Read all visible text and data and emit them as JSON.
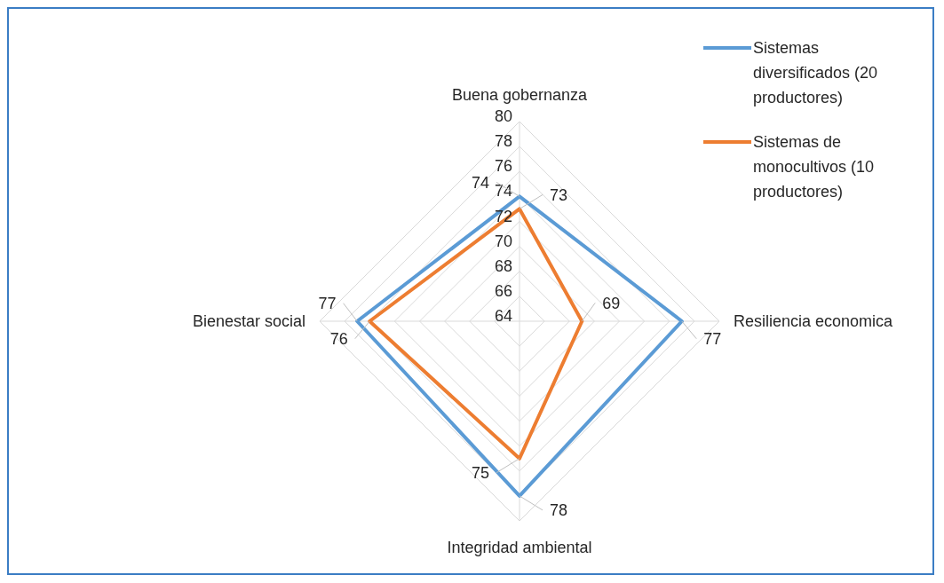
{
  "chart_data": {
    "type": "radar",
    "categories": [
      "Buena gobernanza",
      "Resiliencia economica",
      "Integridad ambiental",
      "Bienestar social"
    ],
    "series": [
      {
        "name": "Sistemas diversificados (20 productores)",
        "color": "#5b9bd5",
        "values": [
          74,
          77,
          78,
          77
        ]
      },
      {
        "name": "Sistemas de monocultivos (10 productores)",
        "color": "#ed7d31",
        "values": [
          73,
          69,
          75,
          76
        ]
      }
    ],
    "ylim": [
      64,
      80
    ],
    "yticks": [
      64,
      66,
      68,
      70,
      72,
      74,
      76,
      78,
      80
    ],
    "grid": true,
    "legend": "top right",
    "data_labels": true,
    "marker": "none"
  }
}
